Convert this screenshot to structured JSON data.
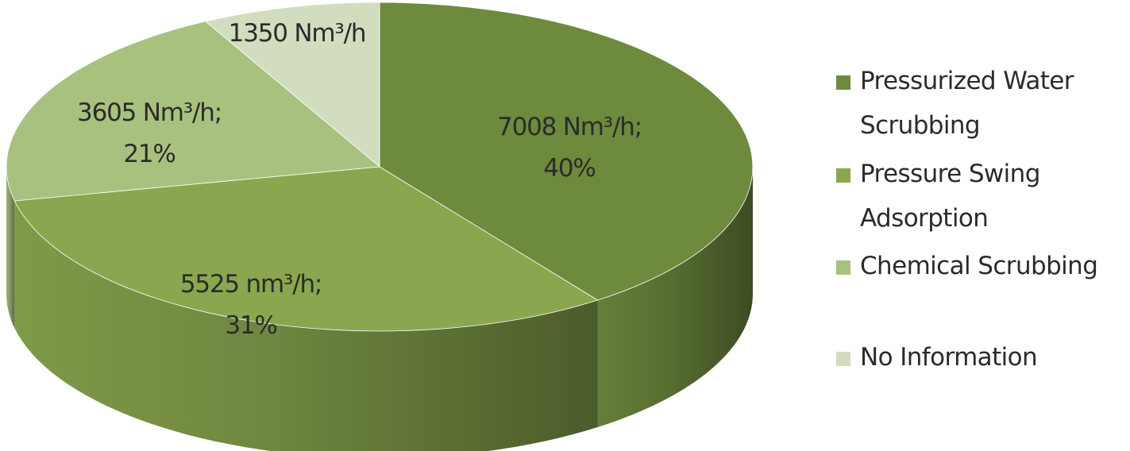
{
  "chart_data": {
    "type": "pie",
    "style": "3d",
    "title": "",
    "legend_position": "right",
    "slices": [
      {
        "name": "Pressurized Water Scrubbing",
        "value": 7008,
        "percent": 40,
        "label_lines": [
          "7008 Nm³/h;",
          "40%"
        ],
        "color": "#6e8a3d"
      },
      {
        "name": "Pressure Swing Adsorption",
        "value": 5525,
        "percent": 31,
        "label_lines": [
          "5525 nm³/h;",
          "31%"
        ],
        "color": "#8aa74f"
      },
      {
        "name": "Chemical Scrubbing",
        "value": 3605,
        "percent": 21,
        "label_lines": [
          "3605 Nm³/h;",
          "21%"
        ],
        "color": "#a9c17e"
      },
      {
        "name": "No Information",
        "value": 1350,
        "percent": 8,
        "label_lines": [
          "1350 Nm³/h"
        ],
        "color": "#d2dcbf"
      }
    ],
    "legend": [
      {
        "lines": [
          "Pressurized Water",
          "Scrubbing"
        ],
        "color": "#6e8a3d"
      },
      {
        "lines": [
          "Pressure Swing",
          "Adsorption"
        ],
        "color": "#8aa74f"
      },
      {
        "lines": [
          "Chemical Scrubbing"
        ],
        "color": "#a9c17e"
      },
      {
        "lines": [
          "No Information"
        ],
        "color": "#d2dcbf"
      }
    ]
  }
}
